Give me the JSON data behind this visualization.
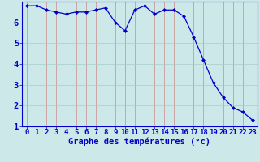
{
  "hours": [
    0,
    1,
    2,
    3,
    4,
    5,
    6,
    7,
    8,
    9,
    10,
    11,
    12,
    13,
    14,
    15,
    16,
    17,
    18,
    19,
    20,
    21,
    22,
    23
  ],
  "temps": [
    6.8,
    6.8,
    6.6,
    6.5,
    6.4,
    6.5,
    6.5,
    6.6,
    6.7,
    6.0,
    5.6,
    6.6,
    6.8,
    6.4,
    6.6,
    6.6,
    6.3,
    5.3,
    4.2,
    3.1,
    2.4,
    1.9,
    1.7,
    1.3
  ],
  "xlabel": "Graphe des températures (°c)",
  "ylim": [
    1,
    7
  ],
  "yticks": [
    1,
    2,
    3,
    4,
    5,
    6
  ],
  "ytick_labels": [
    "1",
    "2",
    "3",
    "4",
    "5",
    "6"
  ],
  "xticks": [
    0,
    1,
    2,
    3,
    4,
    5,
    6,
    7,
    8,
    9,
    10,
    11,
    12,
    13,
    14,
    15,
    16,
    17,
    18,
    19,
    20,
    21,
    22,
    23
  ],
  "line_color": "#0000cc",
  "marker": "D",
  "marker_size": 2.0,
  "bg_color": "#cce8e8",
  "grid_color": "#aacccc",
  "grid_color_v": "#cc8888",
  "label_color": "#0000cc",
  "tick_color": "#0000cc",
  "font_size": 6.5
}
